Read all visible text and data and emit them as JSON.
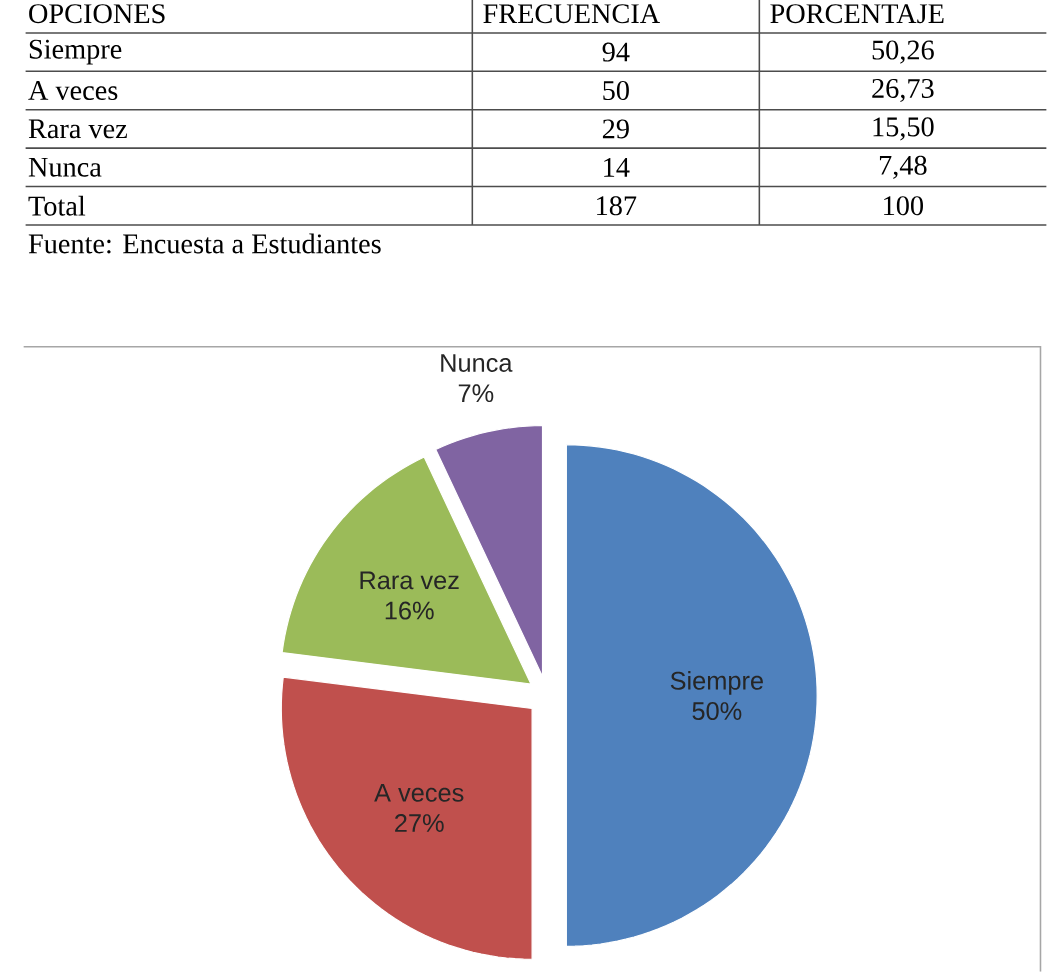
{
  "chart_data": [
    {
      "type": "other",
      "xlabel": "OPCIONES",
      "categories": [
        "Siempre",
        "A veces",
        "Rara vez",
        "Nunca",
        "Total"
      ],
      "series": [
        {
          "name": "FRECUENCIA",
          "values": [
            94,
            50,
            29,
            14,
            187
          ]
        },
        {
          "name": "PORCENTAJE",
          "values": [
            50.26,
            26.73,
            15.5,
            7.48,
            100
          ],
          "value_labels": [
            "50,26",
            "26,73",
            "15,50",
            "7,48",
            "100"
          ]
        }
      ],
      "data_labels": true,
      "annotations": [
        "Fuente: Encuesta a Estudiantes"
      ]
    },
    {
      "type": "pie",
      "categories": [
        "Siempre",
        "A veces",
        "Rara vez",
        "Nunca"
      ],
      "values": [
        50,
        27,
        16,
        7
      ],
      "value_labels": [
        "50%",
        "27%",
        "16%",
        "7%"
      ],
      "colors": [
        "#4f81bd",
        "#c0504d",
        "#9bbb59",
        "#8064a2"
      ]
    }
  ]
}
